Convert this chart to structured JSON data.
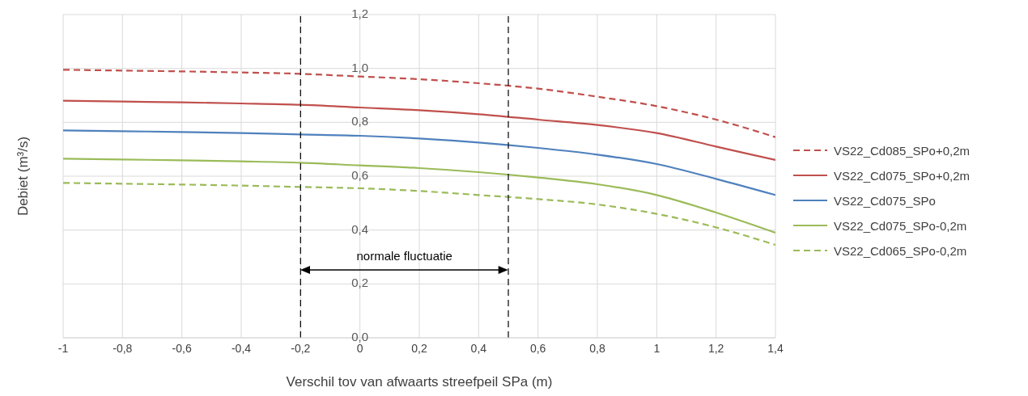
{
  "chart_data": {
    "type": "line",
    "xlabel": "Verschil tov van afwaarts streefpeil SPa (m)",
    "ylabel": "Debiet (m³/s)",
    "x": [
      -1,
      -0.8,
      -0.6,
      -0.4,
      -0.2,
      0,
      0.2,
      0.4,
      0.6,
      0.8,
      1,
      1.2,
      1.4
    ],
    "series": [
      {
        "name": "VS22_Cd085_SPo+0,2m",
        "color": "#c0504d",
        "line_style": "dashed",
        "values": [
          0.995,
          0.992,
          0.989,
          0.985,
          0.98,
          0.97,
          0.96,
          0.945,
          0.925,
          0.895,
          0.86,
          0.81,
          0.745
        ]
      },
      {
        "name": "VS22_Cd075_SPo+0,2m",
        "color": "#c0504d",
        "line_style": "solid",
        "values": [
          0.88,
          0.877,
          0.874,
          0.87,
          0.865,
          0.855,
          0.845,
          0.83,
          0.81,
          0.79,
          0.76,
          0.71,
          0.66
        ]
      },
      {
        "name": "VS22_Cd075_SPo",
        "color": "#4f81bd",
        "line_style": "solid",
        "values": [
          0.77,
          0.767,
          0.764,
          0.76,
          0.755,
          0.75,
          0.74,
          0.725,
          0.705,
          0.68,
          0.645,
          0.59,
          0.53
        ]
      },
      {
        "name": "VS22_Cd075_SPo-0,2m",
        "color": "#9bbb59",
        "line_style": "solid",
        "values": [
          0.665,
          0.662,
          0.659,
          0.655,
          0.65,
          0.64,
          0.63,
          0.615,
          0.595,
          0.57,
          0.53,
          0.465,
          0.39
        ]
      },
      {
        "name": "VS22_Cd065_SPo-0,2m",
        "color": "#9bbb59",
        "line_style": "dashed",
        "values": [
          0.575,
          0.572,
          0.569,
          0.565,
          0.56,
          0.555,
          0.545,
          0.53,
          0.515,
          0.495,
          0.46,
          0.41,
          0.345
        ]
      }
    ],
    "xlim": [
      -1,
      1.4
    ],
    "xticks": [
      -1,
      {
        "value": -0.8,
        "label": "-0,8"
      },
      {
        "value": -0.6,
        "label": "-0,6"
      },
      {
        "value": -0.4,
        "label": "-0,4"
      },
      {
        "value": -0.2,
        "label": "-0,2"
      },
      0,
      {
        "value": 0.2,
        "label": "0,2"
      },
      {
        "value": 0.4,
        "label": "0,4"
      },
      {
        "value": 0.6,
        "label": "0,6"
      },
      {
        "value": 0.8,
        "label": "0,8"
      },
      1,
      {
        "value": 1.2,
        "label": "1,2"
      },
      {
        "value": 1.4,
        "label": "1,4"
      }
    ],
    "ylim": [
      0,
      1.2
    ],
    "yticks": [
      {
        "value": 0,
        "label": "0,0"
      },
      {
        "value": 0.2,
        "label": "0,2"
      },
      {
        "value": 0.4,
        "label": "0,4"
      },
      {
        "value": 0.6,
        "label": "0,6"
      },
      {
        "value": 0.8,
        "label": "0,8"
      },
      {
        "value": 1,
        "label": "1,0"
      },
      {
        "value": 1.2,
        "label": "1,2"
      }
    ],
    "ref_lines": [
      {
        "axis": "x",
        "value": -0.2,
        "color": "#000000",
        "line_style": "dashed"
      },
      {
        "axis": "x",
        "value": 0.5,
        "color": "#000000",
        "line_style": "dashed"
      }
    ],
    "annotations": [
      "normale fluctuatie"
    ],
    "grid": true,
    "legend": "right",
    "marker": "none"
  }
}
